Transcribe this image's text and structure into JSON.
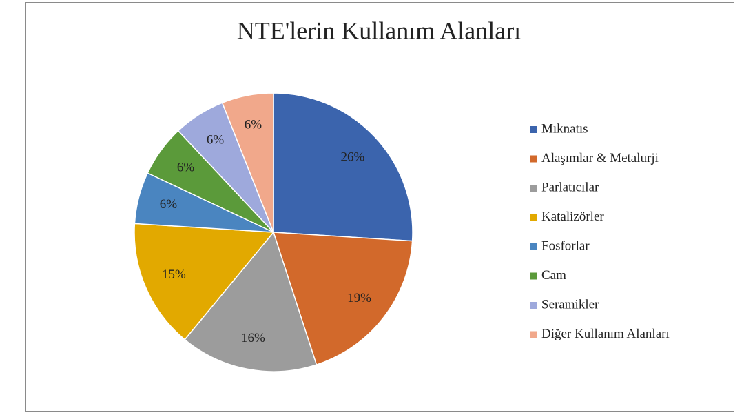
{
  "chart_data": {
    "type": "pie",
    "title": "NTE'lerin Kullanım Alanları",
    "categories": [
      "Mıknatıs",
      "Alaşımlar & Metalurji",
      "Parlatıcılar",
      "Katalizörler",
      "Fosforlar",
      "Cam",
      "Seramikler",
      "Diğer Kullanım Alanları"
    ],
    "values": [
      26,
      19,
      16,
      15,
      6,
      6,
      6,
      6
    ],
    "value_labels": [
      "26%",
      "19%",
      "16%",
      "15%",
      "6%",
      "6%",
      "6%",
      "6%"
    ],
    "colors": [
      "#3b64ad",
      "#d2692b",
      "#9c9c9c",
      "#e2a900",
      "#4a85c0",
      "#5b9a3a",
      "#9ea9dc",
      "#f1a88b"
    ],
    "legend": "right"
  }
}
